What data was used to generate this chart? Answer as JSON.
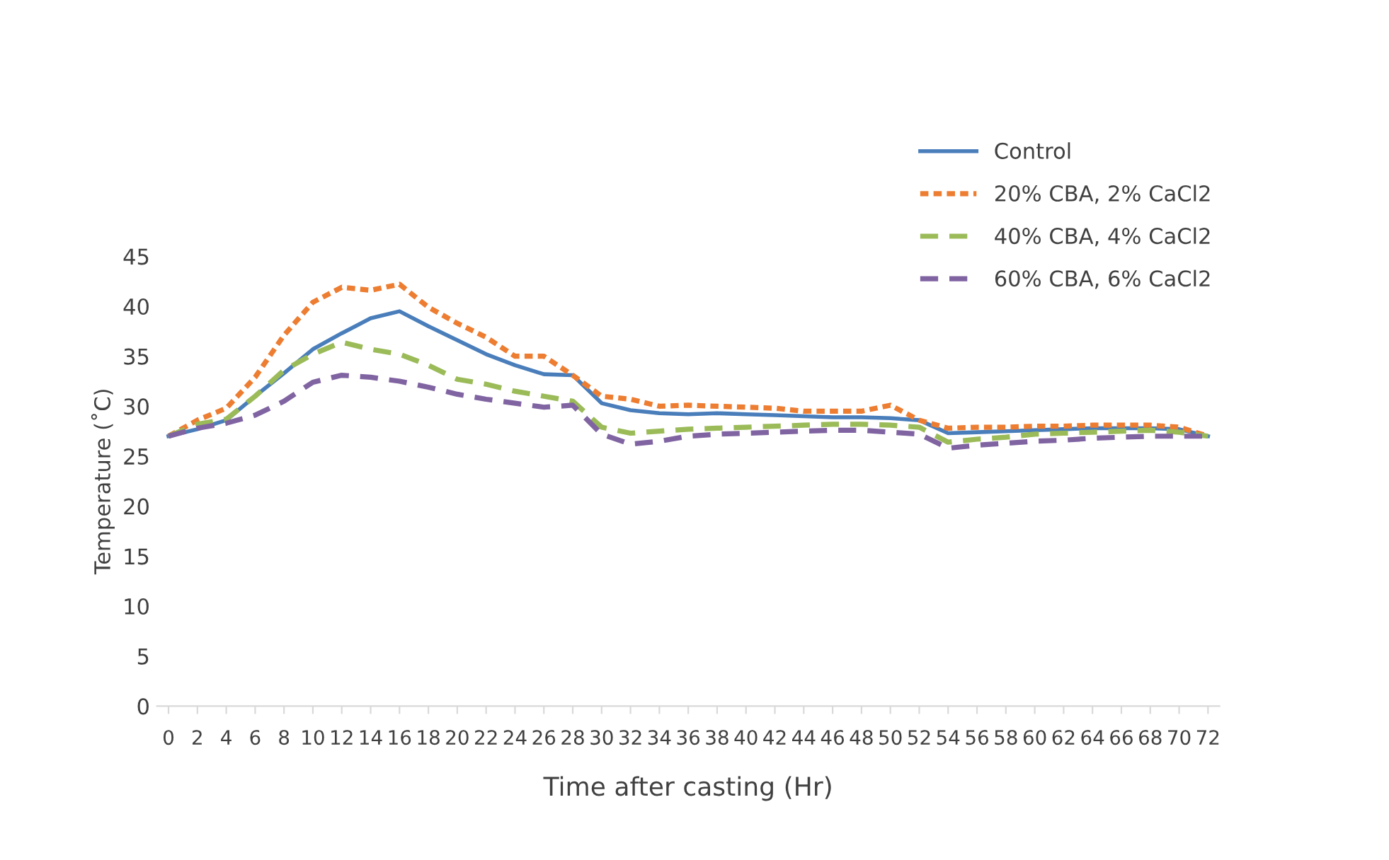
{
  "chart_data": {
    "type": "line",
    "xlabel": "Time after casting (Hr)",
    "ylabel": "Temperature (˚C)",
    "categories": [
      "0",
      "2",
      "4",
      "6",
      "8",
      "10",
      "12",
      "14",
      "16",
      "18",
      "20",
      "22",
      "24",
      "26",
      "28",
      "30",
      "32",
      "34",
      "36",
      "38",
      "40",
      "42",
      "44",
      "46",
      "48",
      "50",
      "52",
      "54",
      "56",
      "58",
      "60",
      "62",
      "64",
      "66",
      "68",
      "70",
      "72"
    ],
    "ylim": [
      0,
      45
    ],
    "yticks": [
      0,
      5,
      10,
      15,
      20,
      25,
      30,
      35,
      40,
      45
    ],
    "grid": false,
    "legend": "top right",
    "marker": "none",
    "series": [
      {
        "name": "Control",
        "color": "#4a7ebb",
        "line_style": "solid",
        "values": [
          27.0,
          27.7,
          28.6,
          31.0,
          33.3,
          35.7,
          37.3,
          38.8,
          39.5,
          38.0,
          36.6,
          35.2,
          34.1,
          33.2,
          33.1,
          30.3,
          29.6,
          29.3,
          29.2,
          29.3,
          29.2,
          29.1,
          29.0,
          28.9,
          28.9,
          28.8,
          28.6,
          27.3,
          27.4,
          27.5,
          27.6,
          27.7,
          27.8,
          27.8,
          27.8,
          27.7,
          27.0
        ]
      },
      {
        "name": "20% CBA, 2% CaCl2",
        "color": "#ed7d31",
        "line_style": "dotted",
        "values": [
          27.0,
          28.6,
          29.8,
          32.9,
          37.1,
          40.4,
          41.9,
          41.6,
          42.2,
          39.9,
          38.3,
          36.9,
          35.0,
          35.0,
          33.1,
          31.0,
          30.7,
          30.0,
          30.1,
          30.0,
          29.9,
          29.8,
          29.5,
          29.5,
          29.5,
          30.1,
          28.6,
          27.8,
          27.9,
          27.9,
          28.0,
          28.0,
          28.1,
          28.1,
          28.1,
          27.9,
          27.0
        ]
      },
      {
        "name": "40% CBA, 4% CaCl2",
        "color": "#9bbb59",
        "line_style": "dashed",
        "values": [
          27.0,
          28.2,
          28.7,
          31.0,
          33.6,
          35.2,
          36.4,
          35.7,
          35.2,
          34.1,
          32.7,
          32.2,
          31.5,
          31.0,
          30.5,
          27.9,
          27.3,
          27.5,
          27.7,
          27.8,
          27.9,
          28.0,
          28.1,
          28.2,
          28.2,
          28.1,
          27.9,
          26.4,
          26.7,
          26.9,
          27.2,
          27.3,
          27.4,
          27.5,
          27.6,
          27.4,
          27.0
        ]
      },
      {
        "name": "60% CBA, 6% CaCl2",
        "color": "#8064a2",
        "line_style": "dashed",
        "values": [
          27.0,
          27.8,
          28.3,
          29.1,
          30.5,
          32.4,
          33.1,
          32.9,
          32.5,
          31.9,
          31.2,
          30.7,
          30.3,
          29.9,
          30.1,
          27.2,
          26.2,
          26.5,
          27.0,
          27.2,
          27.3,
          27.4,
          27.5,
          27.6,
          27.6,
          27.4,
          27.2,
          25.8,
          26.1,
          26.3,
          26.5,
          26.6,
          26.8,
          26.9,
          27.0,
          27.0,
          27.0
        ]
      }
    ]
  }
}
